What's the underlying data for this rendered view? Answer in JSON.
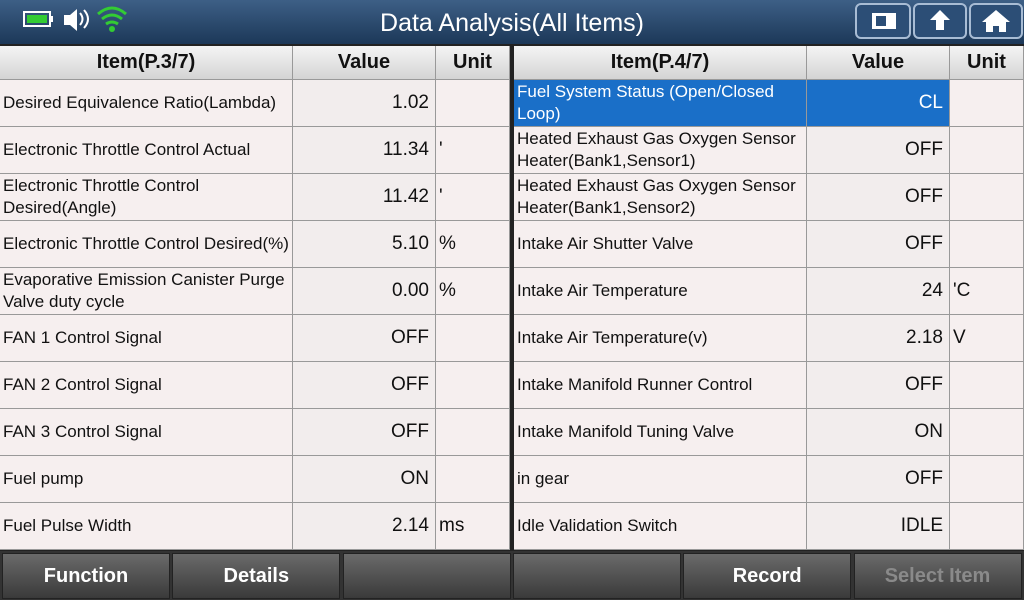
{
  "header": {
    "title": "Data Analysis(All Items)"
  },
  "left_table": {
    "columns": [
      "Item(P.3/7)",
      "Value",
      "Unit"
    ],
    "rows": [
      {
        "item": "Desired Equivalence Ratio(Lambda)",
        "value": "1.02"
      },
      {
        "item": "Electronic Throttle Control Actual",
        "value": "11.34",
        "unit": "'"
      },
      {
        "item": "Electronic Throttle Control Desired(Angle)",
        "value": "11.42",
        "unit": "'"
      },
      {
        "item": "Electronic Throttle Control Desired(%)",
        "value": "5.10",
        "unit": "%"
      },
      {
        "item": "Evaporative Emission Canister Purge Valve duty cycle",
        "value": "0.00",
        "unit": "%"
      },
      {
        "item": "FAN 1 Control Signal",
        "value": "OFF"
      },
      {
        "item": "FAN 2 Control Signal",
        "value": "OFF"
      },
      {
        "item": "FAN 3 Control Signal",
        "value": "OFF"
      },
      {
        "item": "Fuel pump",
        "value": "ON"
      },
      {
        "item": "Fuel Pulse Width",
        "value": "2.14",
        "unit": "ms"
      }
    ]
  },
  "right_table": {
    "columns": [
      "Item(P.4/7)",
      "Value",
      "Unit"
    ],
    "rows": [
      {
        "item": "Fuel System Status (Open/Closed Loop)",
        "value": "CL"
      },
      {
        "item": "Heated Exhaust Gas Oxygen Sensor Heater(Bank1,Sensor1)",
        "value": "OFF"
      },
      {
        "item": "Heated Exhaust Gas Oxygen Sensor Heater(Bank1,Sensor2)",
        "value": "OFF"
      },
      {
        "item": "Intake Air Shutter Valve",
        "value": "OFF"
      },
      {
        "item": "Intake Air Temperature",
        "value": "24",
        "unit": "'C"
      },
      {
        "item": "Intake Air Temperature(v)",
        "value": "2.18",
        "unit": "V"
      },
      {
        "item": "Intake Manifold Runner Control",
        "value": "OFF"
      },
      {
        "item": "Intake Manifold Tuning Valve",
        "value": "ON"
      },
      {
        "item": "in gear",
        "value": "OFF"
      },
      {
        "item": "Idle Validation Switch",
        "value": "IDLE"
      }
    ]
  },
  "footer": {
    "buttons": [
      "Function",
      "Details",
      "Record",
      "Select Item"
    ]
  }
}
